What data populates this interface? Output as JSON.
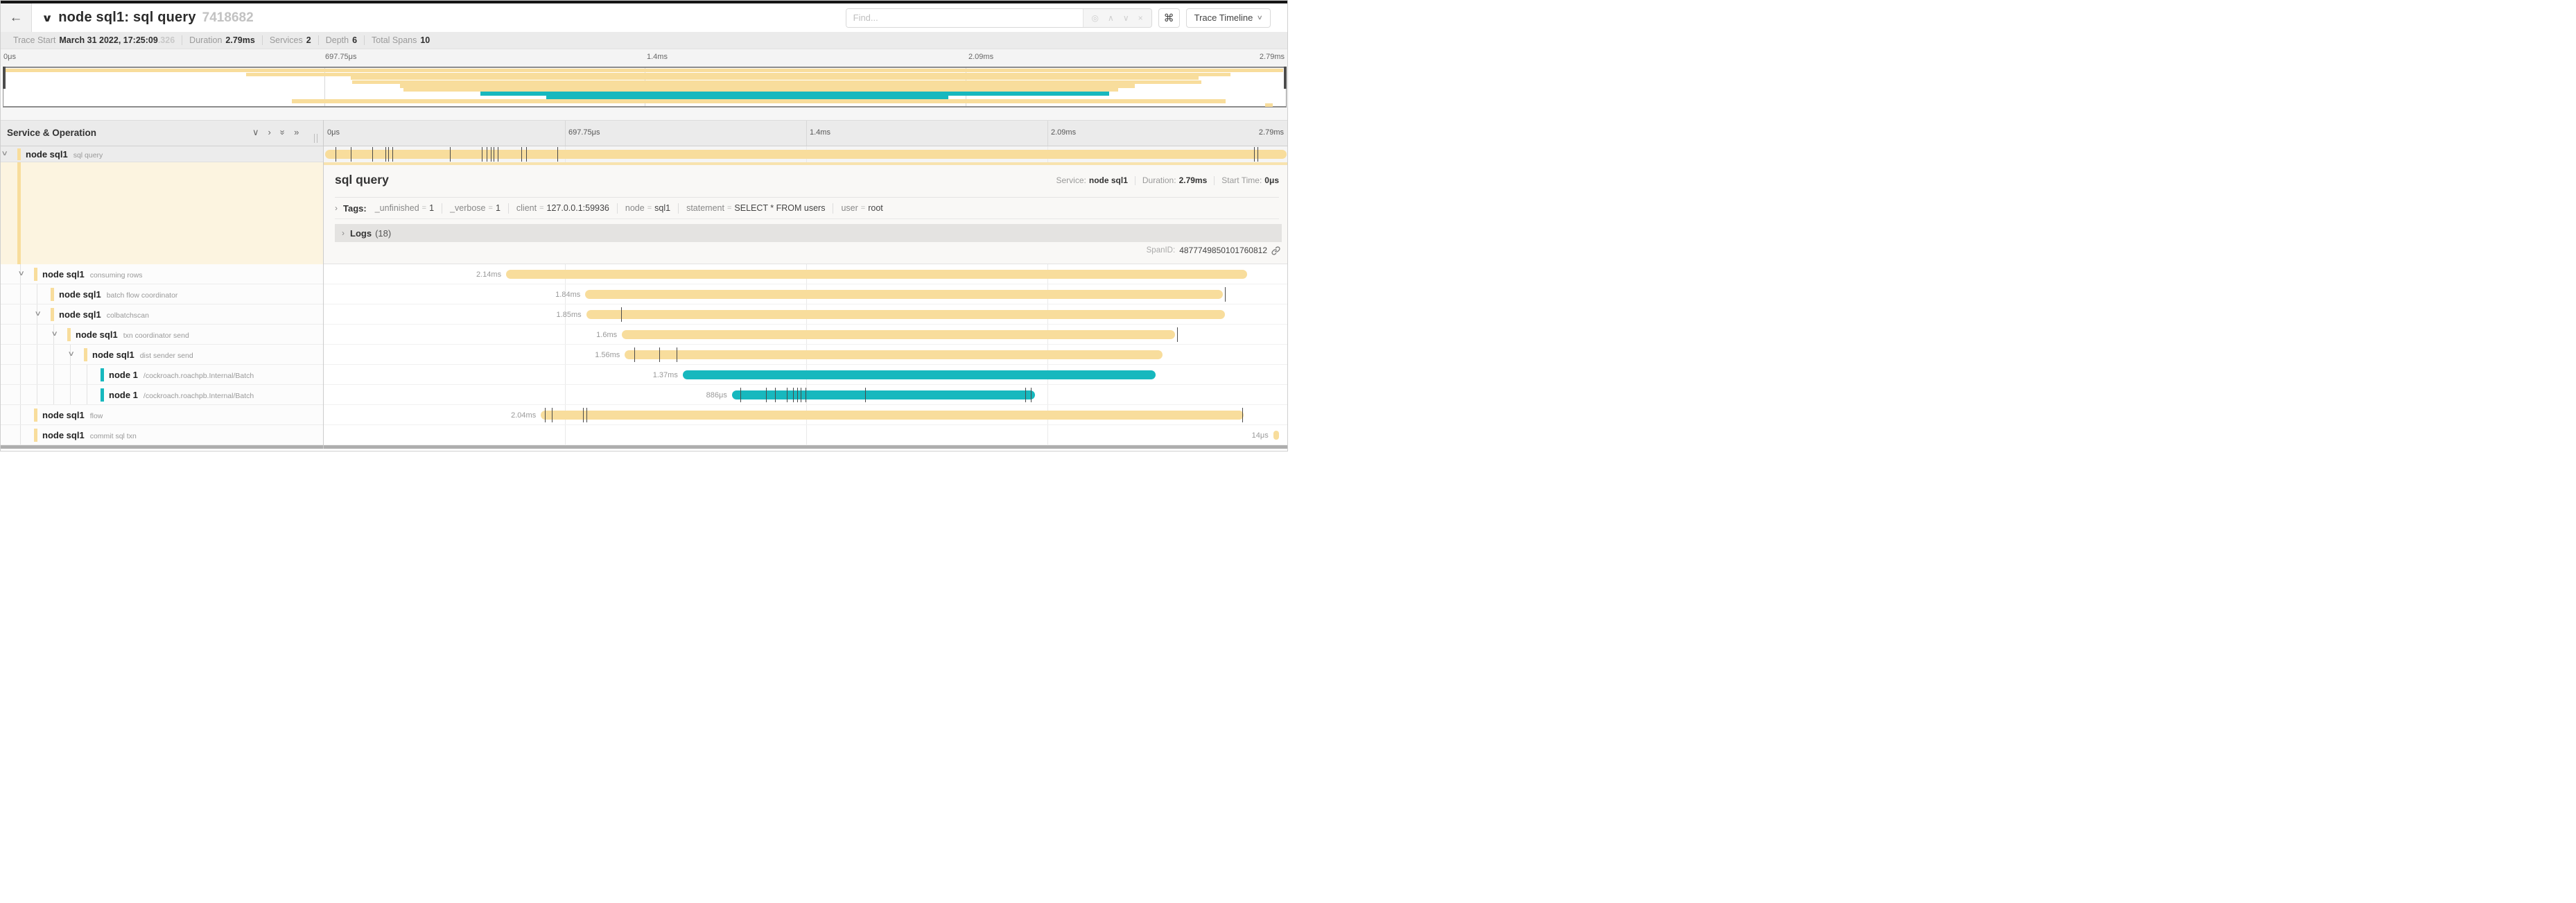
{
  "colors": {
    "tan": "#f8dd9c",
    "teal": "#17b8be"
  },
  "header": {
    "back_icon": "←",
    "collapse_icon": "∨",
    "title": "node sql1: sql query",
    "trace_id_short": "7418682"
  },
  "find": {
    "placeholder": "Find...",
    "target_icon": "◎",
    "prev_icon": "∧",
    "next_icon": "∨",
    "clear_icon": "×",
    "shortcut_icon": "⌘",
    "view_button_label": "Trace Timeline",
    "view_chevron": "∨"
  },
  "summary": [
    {
      "label": "Trace Start",
      "value": "March 31 2022, 17:25:09",
      "suffix": ".326"
    },
    {
      "label": "Duration",
      "value": "2.79ms"
    },
    {
      "label": "Services",
      "value": "2"
    },
    {
      "label": "Depth",
      "value": "6"
    },
    {
      "label": "Total Spans",
      "value": "10"
    }
  ],
  "timeline_ticks": [
    "0μs",
    "697.75μs",
    "1.4ms",
    "2.09ms",
    "2.79ms"
  ],
  "sidebar": {
    "title": "Service & Operation",
    "collapse_one_icon": "∨",
    "expand_one_icon": "›",
    "collapse_all_icon": "»",
    "expand_all_icon": "»"
  },
  "spans": [
    {
      "service": "node sql1",
      "operation": "sql query",
      "depth": 0,
      "color": "tan",
      "start_pct": 0.15,
      "end_pct": 99.8,
      "duration_label": "",
      "ticks_pct": [
        1.2,
        2.8,
        5.0,
        6.4,
        6.7,
        7.1,
        13.1,
        16.4,
        16.9,
        17.3,
        17.6,
        18.0,
        20.5,
        21.0,
        24.2,
        96.4,
        96.8
      ],
      "chevron": true,
      "root": true
    },
    {
      "service": "node sql1",
      "operation": "consuming rows",
      "depth": 1,
      "color": "tan",
      "start_pct": 18.9,
      "end_pct": 95.7,
      "duration_label": "2.14ms",
      "ticks_pct": [],
      "chevron": true
    },
    {
      "service": "node sql1",
      "operation": "batch flow coordinator",
      "depth": 2,
      "color": "tan",
      "start_pct": 27.1,
      "end_pct": 93.2,
      "duration_label": "1.84ms",
      "ticks_pct": [
        93.4
      ],
      "chevron": false
    },
    {
      "service": "node sql1",
      "operation": "colbatchscan",
      "depth": 2,
      "color": "tan",
      "start_pct": 27.2,
      "end_pct": 93.4,
      "duration_label": "1.85ms",
      "ticks_pct": [
        30.8
      ],
      "chevron": true
    },
    {
      "service": "node sql1",
      "operation": "txn coordinator send",
      "depth": 3,
      "color": "tan",
      "start_pct": 30.9,
      "end_pct": 88.2,
      "duration_label": "1.6ms",
      "ticks_pct": [
        88.4
      ],
      "chevron": true
    },
    {
      "service": "node sql1",
      "operation": "dist sender send",
      "depth": 4,
      "color": "tan",
      "start_pct": 31.2,
      "end_pct": 86.9,
      "duration_label": "1.56ms",
      "ticks_pct": [
        32.2,
        34.8,
        36.6
      ],
      "chevron": true
    },
    {
      "service": "node 1",
      "operation": "/cockroach.roachpb.Internal/Batch",
      "depth": 5,
      "color": "teal",
      "start_pct": 37.2,
      "end_pct": 86.2,
      "duration_label": "1.37ms",
      "ticks_pct": [],
      "chevron": false
    },
    {
      "service": "node 1",
      "operation": "/cockroach.roachpb.Internal/Batch",
      "depth": 5,
      "color": "teal",
      "start_pct": 42.3,
      "end_pct": 73.7,
      "duration_label": "886μs",
      "ticks_pct": [
        43.2,
        45.8,
        46.8,
        48.0,
        48.6,
        49.1,
        49.4,
        49.9,
        56.1,
        72.7,
        73.3
      ],
      "chevron": false
    },
    {
      "service": "node sql1",
      "operation": "flow",
      "depth": 1,
      "color": "tan",
      "start_pct": 22.5,
      "end_pct": 95.3,
      "duration_label": "2.04ms",
      "ticks_pct": [
        22.9,
        23.6,
        26.9,
        27.2,
        95.2
      ],
      "chevron": false
    },
    {
      "service": "node sql1",
      "operation": "commit sql txn",
      "depth": 1,
      "color": "tan",
      "start_pct": 98.4,
      "end_pct": 99.0,
      "duration_label": "14μs",
      "ticks_pct": [],
      "chevron": false
    }
  ],
  "detail": {
    "title": "sql query",
    "service_label": "Service:",
    "service_value": "node sql1",
    "duration_label": "Duration:",
    "duration_value": "2.79ms",
    "start_label": "Start Time:",
    "start_value": "0μs",
    "tags_chevron": "›",
    "tags_label": "Tags:",
    "tags": [
      {
        "key": "_unfinished",
        "value": "1"
      },
      {
        "key": "_verbose",
        "value": "1"
      },
      {
        "key": "client",
        "value": "127.0.0.1:59936"
      },
      {
        "key": "node",
        "value": "sql1"
      },
      {
        "key": "statement",
        "value": "SELECT * FROM users"
      },
      {
        "key": "user",
        "value": "root"
      }
    ],
    "logs_chevron": "›",
    "logs_label": "Logs",
    "logs_count": "(18)",
    "span_id_label": "SpanID:",
    "span_id": "4877749850101760812"
  }
}
